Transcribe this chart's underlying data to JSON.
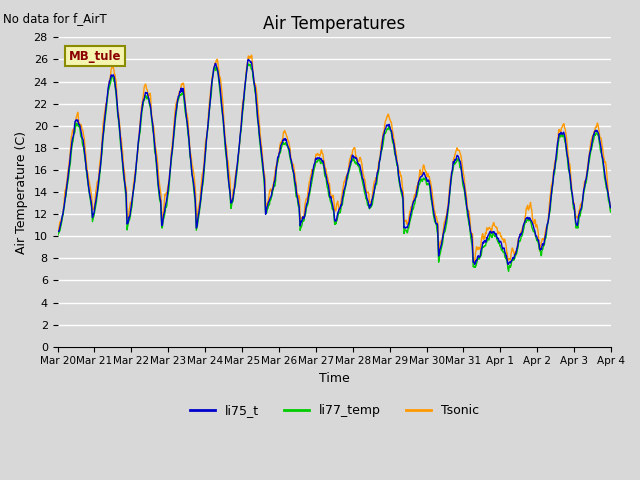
{
  "title": "Air Temperatures",
  "subtitle": "No data for f_AirT",
  "xlabel": "Time",
  "ylabel": "Air Temperature (C)",
  "ylim": [
    0,
    28
  ],
  "yticks": [
    0,
    2,
    4,
    6,
    8,
    10,
    12,
    14,
    16,
    18,
    20,
    22,
    24,
    26,
    28
  ],
  "xtick_labels": [
    "Mar 20",
    "Mar 21",
    "Mar 22",
    "Mar 23",
    "Mar 24",
    "Mar 25",
    "Mar 26",
    "Mar 27",
    "Mar 28",
    "Mar 29",
    "Mar 30",
    "Mar 31",
    "Apr 1",
    "Apr 2",
    "Apr 3",
    "Apr 4"
  ],
  "station_label": "MB_tule",
  "line_colors": {
    "li75_t": "#0000cc",
    "li77_temp": "#00cc00",
    "Tsonic": "#ff9900"
  },
  "background_color": "#d8d8d8",
  "plot_bg_color": "#d8d8d8",
  "grid_color": "#ffffff",
  "legend_labels": [
    "li75_t",
    "li77_temp",
    "Tsonic"
  ]
}
